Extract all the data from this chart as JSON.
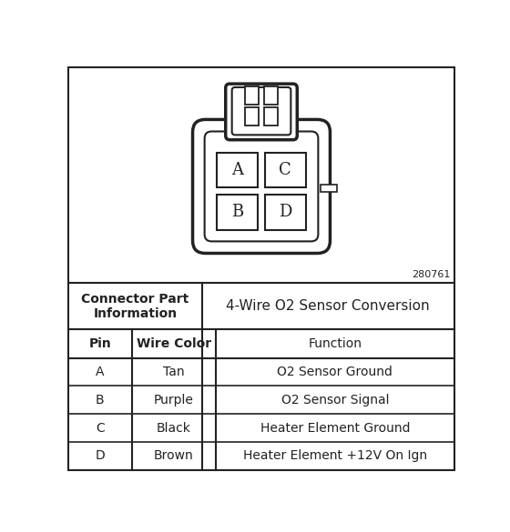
{
  "connector_part_label": "Connector Part\nInformation",
  "connector_title": "4-Wire O2 Sensor Conversion",
  "diagram_id": "280761",
  "pins": [
    "A",
    "B",
    "C",
    "D"
  ],
  "wire_colors": [
    "Tan",
    "Purple",
    "Black",
    "Brown"
  ],
  "functions": [
    "O2 Sensor Ground",
    "O2 Sensor Signal",
    "Heater Element Ground",
    "Heater Element +12V On Ign"
  ],
  "header_pin": "Pin",
  "header_wire": "Wire Color",
  "header_function": "Function",
  "line_color": "#222222"
}
